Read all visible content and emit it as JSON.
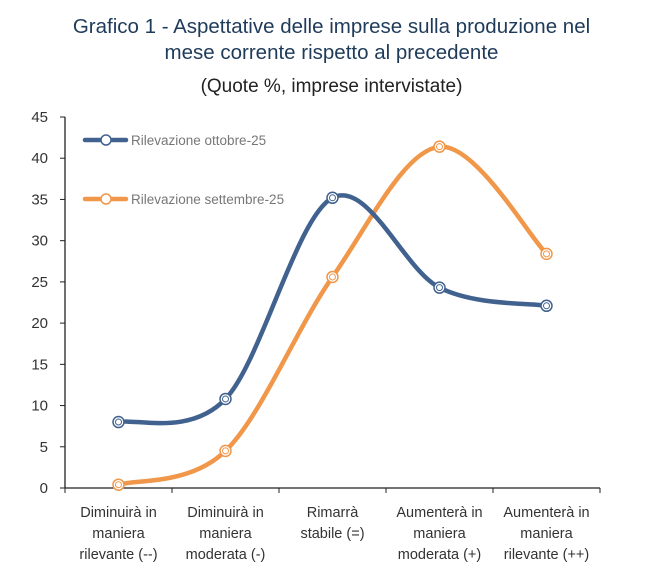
{
  "chart_data": {
    "type": "line",
    "title_line1": "Grafico 1 - Aspettative delle imprese sulla produzione nel",
    "title_line2": "mese corrente rispetto al precedente",
    "subtitle": "(Quote %, imprese intervistate)",
    "xlabel": "",
    "ylabel": "",
    "ylim": [
      0,
      45
    ],
    "yticks": [
      0,
      5,
      10,
      15,
      20,
      25,
      30,
      35,
      40,
      45
    ],
    "categories": [
      [
        "Diminuirà in",
        "maniera",
        "rilevante (--)"
      ],
      [
        "Diminuirà in",
        "maniera",
        "moderata (-)"
      ],
      [
        "Rimarrà",
        "stabile (=)"
      ],
      [
        "Aumenterà in",
        "maniera",
        "moderata (+)"
      ],
      [
        "Aumenterà in",
        "maniera",
        "rilevante (++)"
      ]
    ],
    "series": [
      {
        "name": "Rilevazione ottobre-25",
        "color": "#41628f",
        "values": [
          8.0,
          10.8,
          35.2,
          24.3,
          22.1
        ]
      },
      {
        "name": "Rilevazione settembre-25",
        "color": "#f0974a",
        "values": [
          0.4,
          4.5,
          25.6,
          41.4,
          28.4
        ]
      }
    ],
    "legend_position": "top-left",
    "grid": false
  }
}
